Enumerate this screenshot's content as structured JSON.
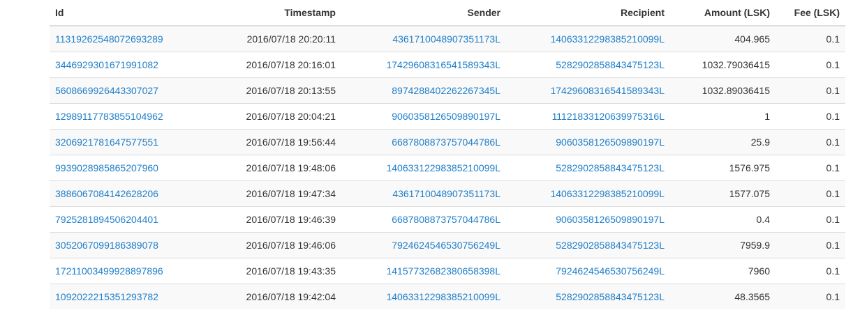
{
  "table": {
    "headers": {
      "id": "Id",
      "timestamp": "Timestamp",
      "sender": "Sender",
      "recipient": "Recipient",
      "amount": "Amount (LSK)",
      "fee": "Fee (LSK)"
    },
    "rows": [
      {
        "id": "11319262548072693289",
        "timestamp": "2016/07/18 20:20:11",
        "sender": "4361710048907351173L",
        "recipient": "14063312298385210099L",
        "amount": "404.965",
        "fee": "0.1"
      },
      {
        "id": "3446929301671991082",
        "timestamp": "2016/07/18 20:16:01",
        "sender": "1742960831654158934​3L",
        "recipient": "5282902858843475123L",
        "amount": "1032.79036415",
        "fee": "0.1"
      },
      {
        "id": "5608669926443307027",
        "timestamp": "2016/07/18 20:13:55",
        "sender": "8974288402262267345L",
        "recipient": "17429608316541589343L",
        "amount": "1032.89036415",
        "fee": "0.1"
      },
      {
        "id": "12989117783855104962",
        "timestamp": "2016/07/18 20:04:21",
        "sender": "9060358126509890197L",
        "recipient": "11121833120639975316L",
        "amount": "1",
        "fee": "0.1"
      },
      {
        "id": "3206921781647577551",
        "timestamp": "2016/07/18 19:56:44",
        "sender": "6687808873757044786L",
        "recipient": "9060358126509890197L",
        "amount": "25.9",
        "fee": "0.1"
      },
      {
        "id": "9939028985865207960",
        "timestamp": "2016/07/18 19:48:06",
        "sender": "14063312298385210099L",
        "recipient": "5282902858843475123L",
        "amount": "1576.975",
        "fee": "0.1"
      },
      {
        "id": "3886067084142628206",
        "timestamp": "2016/07/18 19:47:34",
        "sender": "4361710048907351173L",
        "recipient": "14063312298385210099L",
        "amount": "1577.075",
        "fee": "0.1"
      },
      {
        "id": "7925281894506204401",
        "timestamp": "2016/07/18 19:46:39",
        "sender": "6687808873757044786L",
        "recipient": "9060358126509890197L",
        "amount": "0.4",
        "fee": "0.1"
      },
      {
        "id": "3052067099186389078",
        "timestamp": "2016/07/18 19:46:06",
        "sender": "792462454653075624​9L",
        "recipient": "5282902858843475123L",
        "amount": "7959.9",
        "fee": "0.1"
      },
      {
        "id": "17211003499928897896",
        "timestamp": "2016/07/18 19:43:35",
        "sender": "14157732682380658398L",
        "recipient": "792462454653075624​9L",
        "amount": "7960",
        "fee": "0.1"
      },
      {
        "id": "1092022215351293782",
        "timestamp": "2016/07/18 19:42:04",
        "sender": "14063312298385210099L",
        "recipient": "5282902858843475123L",
        "amount": "48.3565",
        "fee": "0.1"
      }
    ]
  },
  "colors": {
    "link": "#1f7ec9",
    "stripe": "#f9f9f9",
    "border": "#dddddd"
  }
}
